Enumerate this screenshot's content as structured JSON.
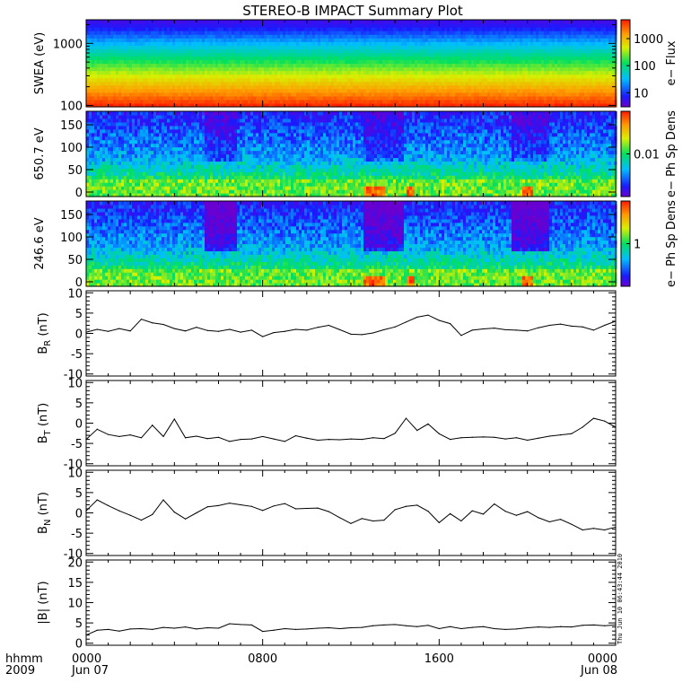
{
  "chart_data": {
    "type": "summary-plot",
    "title": "STEREO-B IMPACT Summary Plot",
    "footer": {
      "left_top": "hhmm",
      "left_bottom": "2009",
      "ticks": [
        "0000",
        "0800",
        "1600",
        "0000"
      ],
      "dates": [
        "Jun 07",
        "Jun 08"
      ]
    },
    "timestamp": "Thu Jun 10 06:43:44 2010",
    "x": {
      "unit": "hours",
      "range": [
        0,
        24
      ],
      "major": [
        0,
        8,
        16,
        24
      ]
    },
    "spectrograms": [
      {
        "id": "swea",
        "type": "heatmap",
        "ylabel": "SWEA (eV)",
        "yscale": "log",
        "ylim": [
          95,
          2400
        ],
        "yticks": [
          100,
          1000
        ],
        "yticklabels": [
          "100",
          "1000"
        ],
        "colorbar": {
          "label": "e− Flux",
          "scale": "log",
          "range": [
            3,
            5000
          ],
          "ticks": [
            10,
            100,
            1000
          ],
          "ticklabels": [
            "10",
            "100",
            "1000"
          ]
        }
      },
      {
        "id": "pad650",
        "type": "heatmap",
        "ylabel": "650.7 eV",
        "yscale": "linear",
        "ylim": [
          -10,
          180
        ],
        "yticks": [
          0,
          50,
          100,
          150
        ],
        "yticklabels": [
          "0",
          "50",
          "100",
          "150"
        ],
        "colorbar": {
          "label": "e− Ph Sp Dens",
          "scale": "log",
          "range": [
            0.001,
            0.1
          ],
          "ticks": [
            0.01
          ],
          "ticklabels": [
            "0.01"
          ]
        }
      },
      {
        "id": "pad246",
        "type": "heatmap",
        "ylabel": "246.6 eV",
        "yscale": "linear",
        "ylim": [
          -10,
          180
        ],
        "yticks": [
          0,
          50,
          100,
          150
        ],
        "yticklabels": [
          "0",
          "50",
          "100",
          "150"
        ],
        "colorbar": {
          "label": "e− Ph Sp Dens",
          "scale": "log",
          "range": [
            0.1,
            10
          ],
          "ticks": [
            1
          ],
          "ticklabels": [
            "1"
          ]
        }
      }
    ],
    "line_panels": [
      {
        "id": "br",
        "type": "line",
        "ylabel_main": "B",
        "ylabel_sub": "R",
        "ylabel_unit": " (nT)",
        "ylim": [
          -10.5,
          10.5
        ],
        "yticks": [
          -10,
          -5,
          0,
          5,
          10
        ],
        "yticklabels": [
          "-10",
          "-5",
          "0",
          "5",
          "10"
        ],
        "x": [
          0,
          0.5,
          1,
          1.5,
          2,
          2.5,
          3,
          3.5,
          4,
          4.5,
          5,
          5.5,
          6,
          6.5,
          7,
          7.5,
          8,
          8.5,
          9,
          9.5,
          10,
          10.5,
          11,
          11.5,
          12,
          12.5,
          13,
          13.5,
          14,
          14.5,
          15,
          15.5,
          16,
          16.5,
          17,
          17.5,
          18,
          18.5,
          19,
          19.5,
          20,
          20.5,
          21,
          21.5,
          22,
          22.5,
          23,
          23.5,
          24
        ],
        "values": [
          0.3,
          1,
          0.5,
          1.2,
          0.6,
          3.5,
          2.6,
          2.2,
          1.2,
          0.6,
          1.5,
          0.7,
          0.5,
          1,
          0.3,
          0.8,
          -0.8,
          0.2,
          0.5,
          1,
          0.8,
          1.5,
          2,
          0.9,
          -0.2,
          -0.3,
          0.1,
          0.9,
          1.6,
          2.8,
          4,
          4.5,
          3.2,
          2.4,
          -0.5,
          0.8,
          1.1,
          1.3,
          0.9,
          0.8,
          0.6,
          1.4,
          2,
          2.3,
          1.8,
          1.6,
          0.8,
          2,
          3
        ]
      },
      {
        "id": "bt",
        "type": "line",
        "ylabel_main": "B",
        "ylabel_sub": "T",
        "ylabel_unit": " (nT)",
        "ylim": [
          -10.5,
          10.5
        ],
        "yticks": [
          -10,
          -5,
          0,
          5,
          10
        ],
        "yticklabels": [
          "-10",
          "-5",
          "0",
          "5",
          "10"
        ],
        "x": [
          0,
          0.5,
          1,
          1.5,
          2,
          2.5,
          3,
          3.5,
          4,
          4.5,
          5,
          5.5,
          6,
          6.5,
          7,
          7.5,
          8,
          8.5,
          9,
          9.5,
          10,
          10.5,
          11,
          11.5,
          12,
          12.5,
          13,
          13.5,
          14,
          14.5,
          15,
          15.5,
          16,
          16.5,
          17,
          17.5,
          18,
          18.5,
          19,
          19.5,
          20,
          20.5,
          21,
          21.5,
          22,
          22.5,
          23,
          23.5,
          24
        ],
        "values": [
          -4,
          -1.5,
          -2.8,
          -3.3,
          -2.9,
          -3.6,
          -0.5,
          -3.3,
          1,
          -3.6,
          -3.2,
          -3.8,
          -3.5,
          -4.5,
          -4,
          -3.9,
          -3.3,
          -3.9,
          -4.5,
          -3.1,
          -3.7,
          -4.2,
          -4,
          -4.1,
          -3.9,
          -4,
          -3.6,
          -3.8,
          -2.5,
          1.2,
          -1.8,
          -0.2,
          -2.6,
          -4,
          -3.6,
          -3.5,
          -3.4,
          -3.5,
          -3.9,
          -3.6,
          -4.2,
          -3.7,
          -3.2,
          -2.9,
          -2.6,
          -1,
          1.2,
          0.5,
          -1
        ]
      },
      {
        "id": "bn",
        "type": "line",
        "ylabel_main": "B",
        "ylabel_sub": "N",
        "ylabel_unit": " (nT)",
        "ylim": [
          -10.5,
          10.5
        ],
        "yticks": [
          -10,
          -5,
          0,
          5,
          10
        ],
        "yticklabels": [
          "-10",
          "-5",
          "0",
          "5",
          "10"
        ],
        "x": [
          0,
          0.5,
          1,
          1.5,
          2,
          2.5,
          3,
          3.5,
          4,
          4.5,
          5,
          5.5,
          6,
          6.5,
          7,
          7.5,
          8,
          8.5,
          9,
          9.5,
          10,
          10.5,
          11,
          11.5,
          12,
          12.5,
          13,
          13.5,
          14,
          14.5,
          15,
          15.5,
          16,
          16.5,
          17,
          17.5,
          18,
          18.5,
          19,
          19.5,
          20,
          20.5,
          21,
          21.5,
          22,
          22.5,
          23,
          23.5,
          24
        ],
        "values": [
          0.5,
          3.2,
          1.8,
          0.5,
          -0.6,
          -1.8,
          -0.4,
          3.2,
          0.2,
          -1.5,
          0,
          1.5,
          1.8,
          2.4,
          2,
          1.6,
          0.6,
          1.7,
          2.3,
          1,
          1.1,
          1.2,
          0.3,
          -1.2,
          -2.6,
          -1.4,
          -2,
          -1.8,
          0.8,
          1.6,
          1.9,
          0.4,
          -2.4,
          -0.2,
          -2,
          0.5,
          -0.3,
          2.2,
          0.4,
          -0.6,
          0.3,
          -1.2,
          -2.2,
          -1.6,
          -2.8,
          -4.2,
          -3.8,
          -4.2,
          -3.5
        ]
      },
      {
        "id": "bmag",
        "type": "line",
        "ylabel_main": "|B|",
        "ylabel_sub": "",
        "ylabel_unit": " (nT)",
        "ylim": [
          -0.5,
          20.5
        ],
        "yticks": [
          0,
          5,
          10,
          15,
          20
        ],
        "yticklabels": [
          "0",
          "5",
          "10",
          "15",
          "20"
        ],
        "x": [
          0,
          0.5,
          1,
          1.5,
          2,
          2.5,
          3,
          3.5,
          4,
          4.5,
          5,
          5.5,
          6,
          6.5,
          7,
          7.5,
          8,
          8.5,
          9,
          9.5,
          10,
          10.5,
          11,
          11.5,
          12,
          12.5,
          13,
          13.5,
          14,
          14.5,
          15,
          15.5,
          16,
          16.5,
          17,
          17.5,
          18,
          18.5,
          19,
          19.5,
          20,
          20.5,
          21,
          21.5,
          22,
          22.5,
          23,
          23.5,
          24
        ],
        "values": [
          2,
          3.2,
          3.4,
          3,
          3.5,
          3.6,
          3.4,
          3.9,
          3.7,
          4,
          3.5,
          3.8,
          3.7,
          4.8,
          4.6,
          4.5,
          2.9,
          3.2,
          3.6,
          3.4,
          3.5,
          3.7,
          3.8,
          3.6,
          3.8,
          3.9,
          4.3,
          4.5,
          4.6,
          4.3,
          4.1,
          4.4,
          3.6,
          4.1,
          3.6,
          3.9,
          4.1,
          3.6,
          3.4,
          3.5,
          3.8,
          4,
          3.9,
          4.1,
          4,
          4.4,
          4.5,
          4.3,
          4.5
        ]
      }
    ]
  }
}
